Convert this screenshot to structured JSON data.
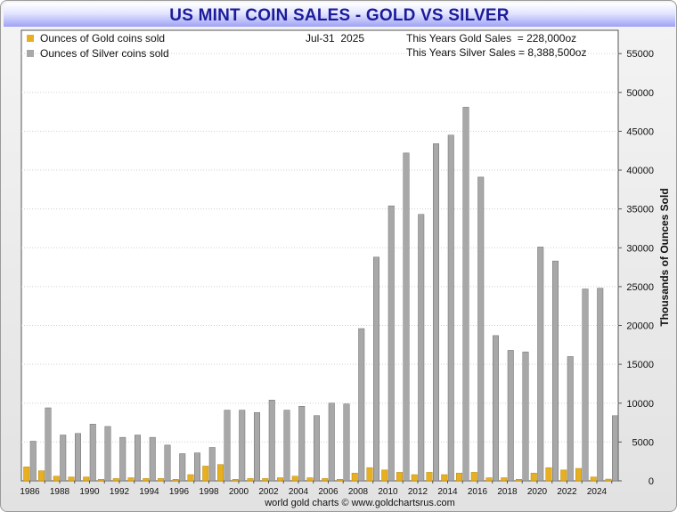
{
  "header": {
    "title": "US MINT COIN SALES - GOLD VS SILVER"
  },
  "legend": {
    "gold_label": "Ounces of Gold coins sold",
    "silver_label": "Ounces of Silver coins sold"
  },
  "info": {
    "date": "Jul-31  2025",
    "gold_sales": "This Years Gold Sales  = 228,000oz",
    "silver_sales": "This Years Silver Sales = 8,388,500oz"
  },
  "footer": "world gold charts © www.goldchartsrus.com",
  "colors": {
    "gold": "#e8b020",
    "silver": "#a8a8a8",
    "title": "#1c1c9a",
    "plot_bg": "#ffffff"
  },
  "chart_data": {
    "type": "bar",
    "ylabel": "Thousands of Ounces Sold",
    "ylim": [
      0,
      58000
    ],
    "yticks": [
      0,
      5000,
      10000,
      15000,
      20000,
      25000,
      30000,
      35000,
      40000,
      45000,
      50000,
      55000
    ],
    "xtick_labels": [
      "1986",
      "1988",
      "1990",
      "1992",
      "1994",
      "1996",
      "1998",
      "2000",
      "2002",
      "2004",
      "2006",
      "2008",
      "2010",
      "2012",
      "2014",
      "2016",
      "2018",
      "2020",
      "2022",
      "2024"
    ],
    "categories": [
      "1986",
      "1987",
      "1988",
      "1989",
      "1990",
      "1991",
      "1992",
      "1993",
      "1994",
      "1995",
      "1996",
      "1997",
      "1998",
      "1999",
      "2000",
      "2001",
      "2002",
      "2003",
      "2004",
      "2005",
      "2006",
      "2007",
      "2008",
      "2009",
      "2010",
      "2011",
      "2012",
      "2013",
      "2014",
      "2015",
      "2016",
      "2017",
      "2018",
      "2019",
      "2020",
      "2021",
      "2022",
      "2023",
      "2024",
      "2025"
    ],
    "series": [
      {
        "name": "Ounces of Gold coins sold",
        "values": [
          1800,
          1300,
          600,
          500,
          500,
          200,
          300,
          400,
          300,
          300,
          200,
          800,
          1900,
          2100,
          200,
          300,
          300,
          400,
          600,
          400,
          300,
          200,
          1000,
          1700,
          1400,
          1100,
          800,
          1100,
          800,
          1000,
          1100,
          400,
          400,
          200,
          1000,
          1700,
          1400,
          1600,
          500,
          228
        ]
      },
      {
        "name": "Ounces of Silver coins sold",
        "values": [
          5100,
          9400,
          5900,
          6100,
          7300,
          7000,
          5600,
          5900,
          5600,
          4600,
          3500,
          3600,
          4300,
          9100,
          9100,
          8800,
          10400,
          9100,
          9600,
          8400,
          10000,
          9900,
          19600,
          28800,
          35400,
          42200,
          34300,
          43400,
          44500,
          48100,
          39100,
          18700,
          16800,
          16600,
          30100,
          28300,
          16000,
          24700,
          24800,
          8389
        ]
      }
    ],
    "grid": "horizontal dotted",
    "legend_position": "top-left"
  }
}
